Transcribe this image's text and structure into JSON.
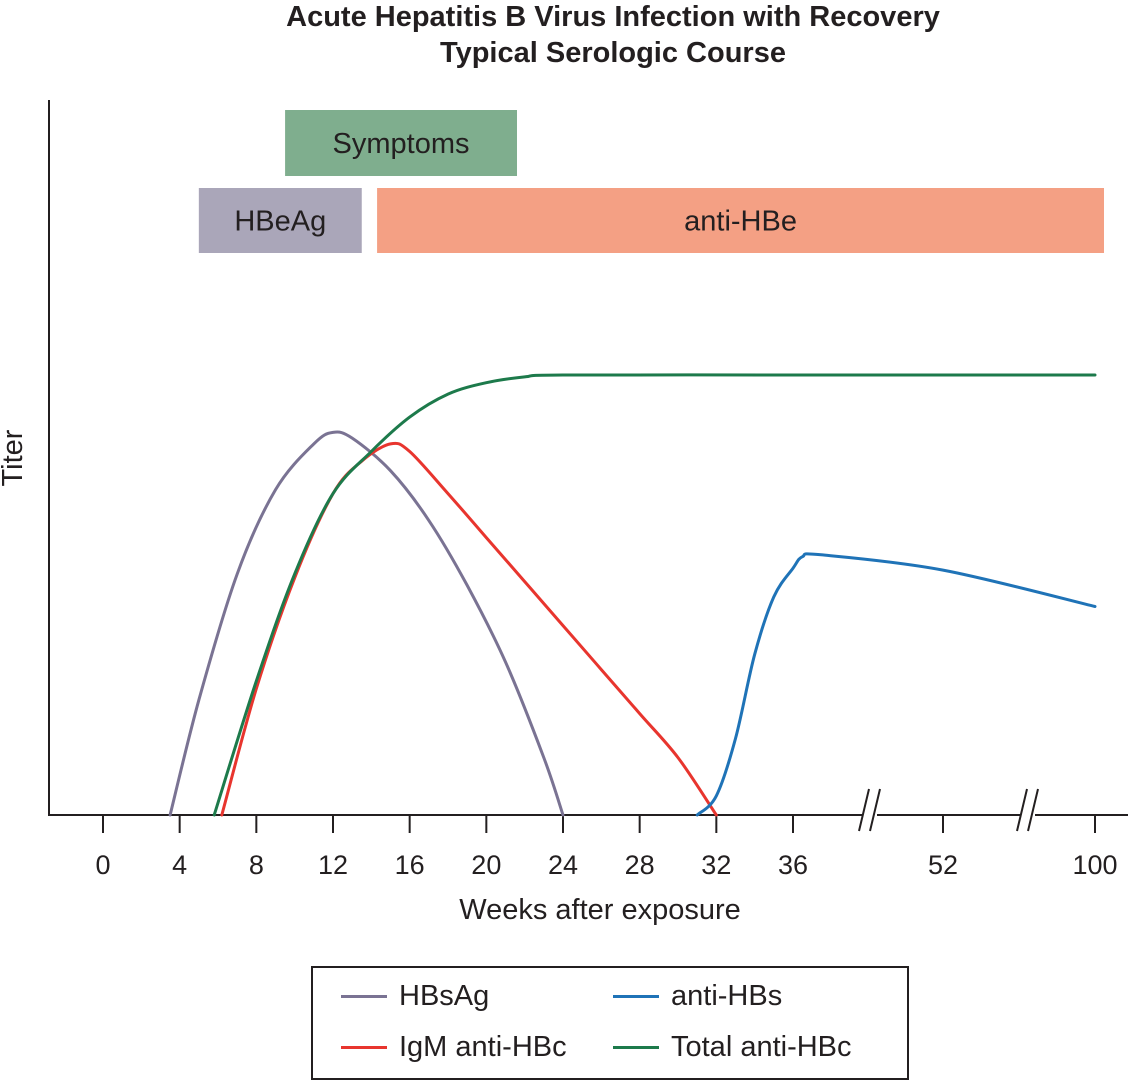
{
  "chart_data": {
    "type": "line",
    "title": "Acute Hepatitis B Virus Infection with Recovery",
    "subtitle": "Typical Serologic Course",
    "xlabel": "Weeks after exposure",
    "ylabel": "Titer",
    "x_ticks": [
      "0",
      "4",
      "8",
      "12",
      "16",
      "20",
      "24",
      "28",
      "32",
      "36",
      "52",
      "100"
    ],
    "axis_breaks_after": [
      "36",
      "52"
    ],
    "bands": [
      {
        "name": "Symptoms",
        "start": 9.5,
        "end": 21.6,
        "color": "#7fae8e",
        "row": 1
      },
      {
        "name": "HBeAg",
        "start": 5.0,
        "end": 13.5,
        "color": "#aaa6b9",
        "row": 2
      },
      {
        "name": "anti-HBe",
        "start": 14.3,
        "end": 100,
        "color": "#f4a084",
        "row": 2
      }
    ],
    "series": [
      {
        "name": "HBsAg",
        "color": "#7a7393",
        "points": [
          [
            3.5,
            0
          ],
          [
            5,
            30
          ],
          [
            7,
            63
          ],
          [
            9,
            85
          ],
          [
            11,
            97
          ],
          [
            12,
            100
          ],
          [
            13,
            98.5
          ],
          [
            15,
            90
          ],
          [
            17,
            77
          ],
          [
            19,
            60
          ],
          [
            21,
            40
          ],
          [
            23,
            15
          ],
          [
            24,
            0
          ]
        ]
      },
      {
        "name": "IgM anti-HBc",
        "color": "#e8352e",
        "points": [
          [
            6.2,
            0
          ],
          [
            8,
            33
          ],
          [
            10,
            62
          ],
          [
            12,
            84
          ],
          [
            13.5,
            92.5
          ],
          [
            15,
            97
          ],
          [
            16,
            95
          ],
          [
            18,
            84
          ],
          [
            20,
            72.5
          ],
          [
            22,
            61
          ],
          [
            24,
            49.5
          ],
          [
            26,
            38
          ],
          [
            28,
            26.5
          ],
          [
            30,
            15
          ],
          [
            32,
            0
          ]
        ]
      },
      {
        "name": "anti-HBs",
        "color": "#1f73b7",
        "points": [
          [
            31,
            0
          ],
          [
            32,
            5
          ],
          [
            33,
            20
          ],
          [
            34,
            42
          ],
          [
            35,
            57
          ],
          [
            36,
            64.5
          ],
          [
            37,
            67.5
          ],
          [
            39,
            68
          ],
          [
            52,
            64
          ],
          [
            100,
            54.5
          ]
        ]
      },
      {
        "name": "Total anti-HBc",
        "color": "#1d7a4b",
        "points": [
          [
            5.8,
            0
          ],
          [
            8,
            35
          ],
          [
            10,
            63
          ],
          [
            12,
            84
          ],
          [
            14,
            95
          ],
          [
            16,
            104
          ],
          [
            18,
            110
          ],
          [
            20,
            113
          ],
          [
            22,
            114.5
          ],
          [
            24,
            115
          ],
          [
            36,
            115
          ],
          [
            52,
            115
          ],
          [
            100,
            115
          ]
        ]
      }
    ],
    "ylim": [
      0,
      115
    ],
    "legend": "bottom-center",
    "grid": false
  }
}
